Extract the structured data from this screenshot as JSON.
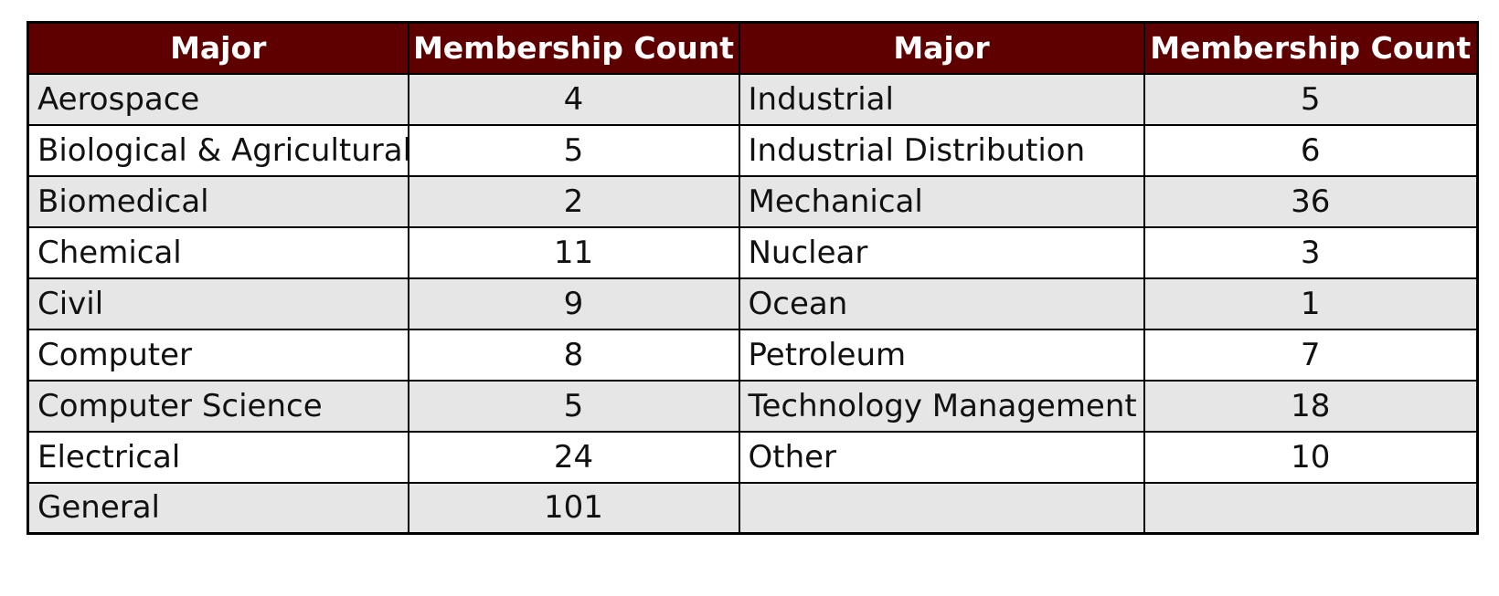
{
  "table": {
    "headers": [
      "Major",
      "Membership Count",
      "Major",
      "Membership Count"
    ],
    "rows": [
      [
        "Aerospace",
        "4",
        "Industrial",
        "5"
      ],
      [
        "Biological & Agricultural",
        "5",
        "Industrial Distribution",
        "6"
      ],
      [
        "Biomedical",
        "2",
        "Mechanical",
        "36"
      ],
      [
        "Chemical",
        "11",
        "Nuclear",
        "3"
      ],
      [
        "Civil",
        "9",
        "Ocean",
        "1"
      ],
      [
        "Computer",
        "8",
        "Petroleum",
        "7"
      ],
      [
        "Computer Science",
        "5",
        "Technology Management",
        "18"
      ],
      [
        "Electrical",
        "24",
        "Other",
        "10"
      ],
      [
        "General",
        "101",
        "",
        ""
      ]
    ]
  },
  "colors": {
    "header_background": "#5e0000",
    "header_text": "#ffffff",
    "shaded_row": "#e6e6e6",
    "plain_row": "#ffffff",
    "border": "#000000"
  }
}
